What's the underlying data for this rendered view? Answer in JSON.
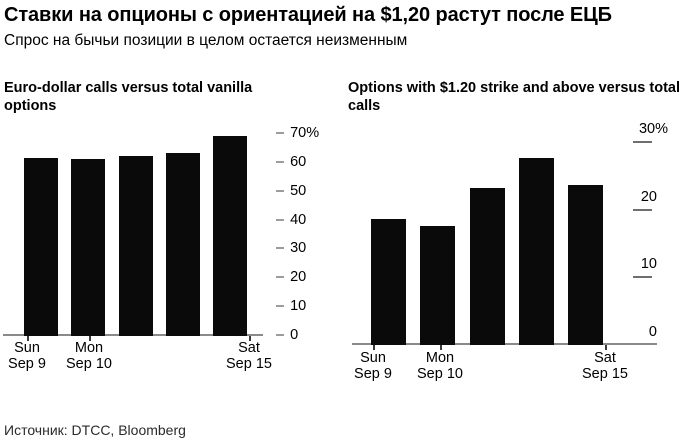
{
  "header": {
    "title": "Ставки на опционы с ориентацией на $1,20 растут после ЕЦБ",
    "subtitle": "Спрос на бычьи позиции в целом остается неизменным"
  },
  "source_label": "Источник: DTCC, Bloomberg",
  "colors": {
    "bar": "#0a0a0a",
    "axis_line": "#8a8a8a",
    "tick_dash": "#6f6f6f",
    "text": "#000000",
    "background": "#ffffff"
  },
  "chart_data": [
    {
      "type": "bar",
      "title": "Euro-dollar calls versus total vanilla options",
      "ylabel": "",
      "unit": "%",
      "ylim": [
        0,
        70
      ],
      "grid": false,
      "legend": null,
      "y_tick_style": "dash-left",
      "y_ticks": [
        {
          "value": 70,
          "label": "70%"
        },
        {
          "value": 60,
          "label": "60"
        },
        {
          "value": 50,
          "label": "50"
        },
        {
          "value": 40,
          "label": "40"
        },
        {
          "value": 30,
          "label": "30"
        },
        {
          "value": 20,
          "label": "20"
        },
        {
          "value": 10,
          "label": "10"
        },
        {
          "value": 0,
          "label": "0"
        }
      ],
      "values": [
        61.5,
        61,
        62,
        63,
        69
      ],
      "x_ticks": [
        {
          "bar": 0,
          "lines": [
            "Sun",
            "Sep 9"
          ]
        },
        {
          "bar": 1,
          "lines": [
            "Mon",
            "Sep 10"
          ]
        },
        {
          "bar": 4,
          "lines": [
            "Sat",
            "Sep 15"
          ]
        }
      ]
    },
    {
      "type": "bar",
      "title": "Options with $1.20 strike and above versus total calls",
      "ylabel": "",
      "unit": "%",
      "ylim": [
        0,
        30
      ],
      "grid": false,
      "legend": null,
      "y_tick_style": "underline",
      "y_ticks": [
        {
          "value": 30,
          "label": "30%"
        },
        {
          "value": 20,
          "label": "20"
        },
        {
          "value": 10,
          "label": "10"
        },
        {
          "value": 0,
          "label": "0"
        }
      ],
      "values": [
        18.5,
        17.5,
        23,
        27.5,
        23.5
      ],
      "x_ticks": [
        {
          "bar": 0,
          "lines": [
            "Sun",
            "Sep 9"
          ]
        },
        {
          "bar": 1,
          "lines": [
            "Mon",
            "Sep 10"
          ]
        },
        {
          "bar": 4,
          "lines": [
            "Sat",
            "Sep 15"
          ]
        }
      ]
    }
  ]
}
